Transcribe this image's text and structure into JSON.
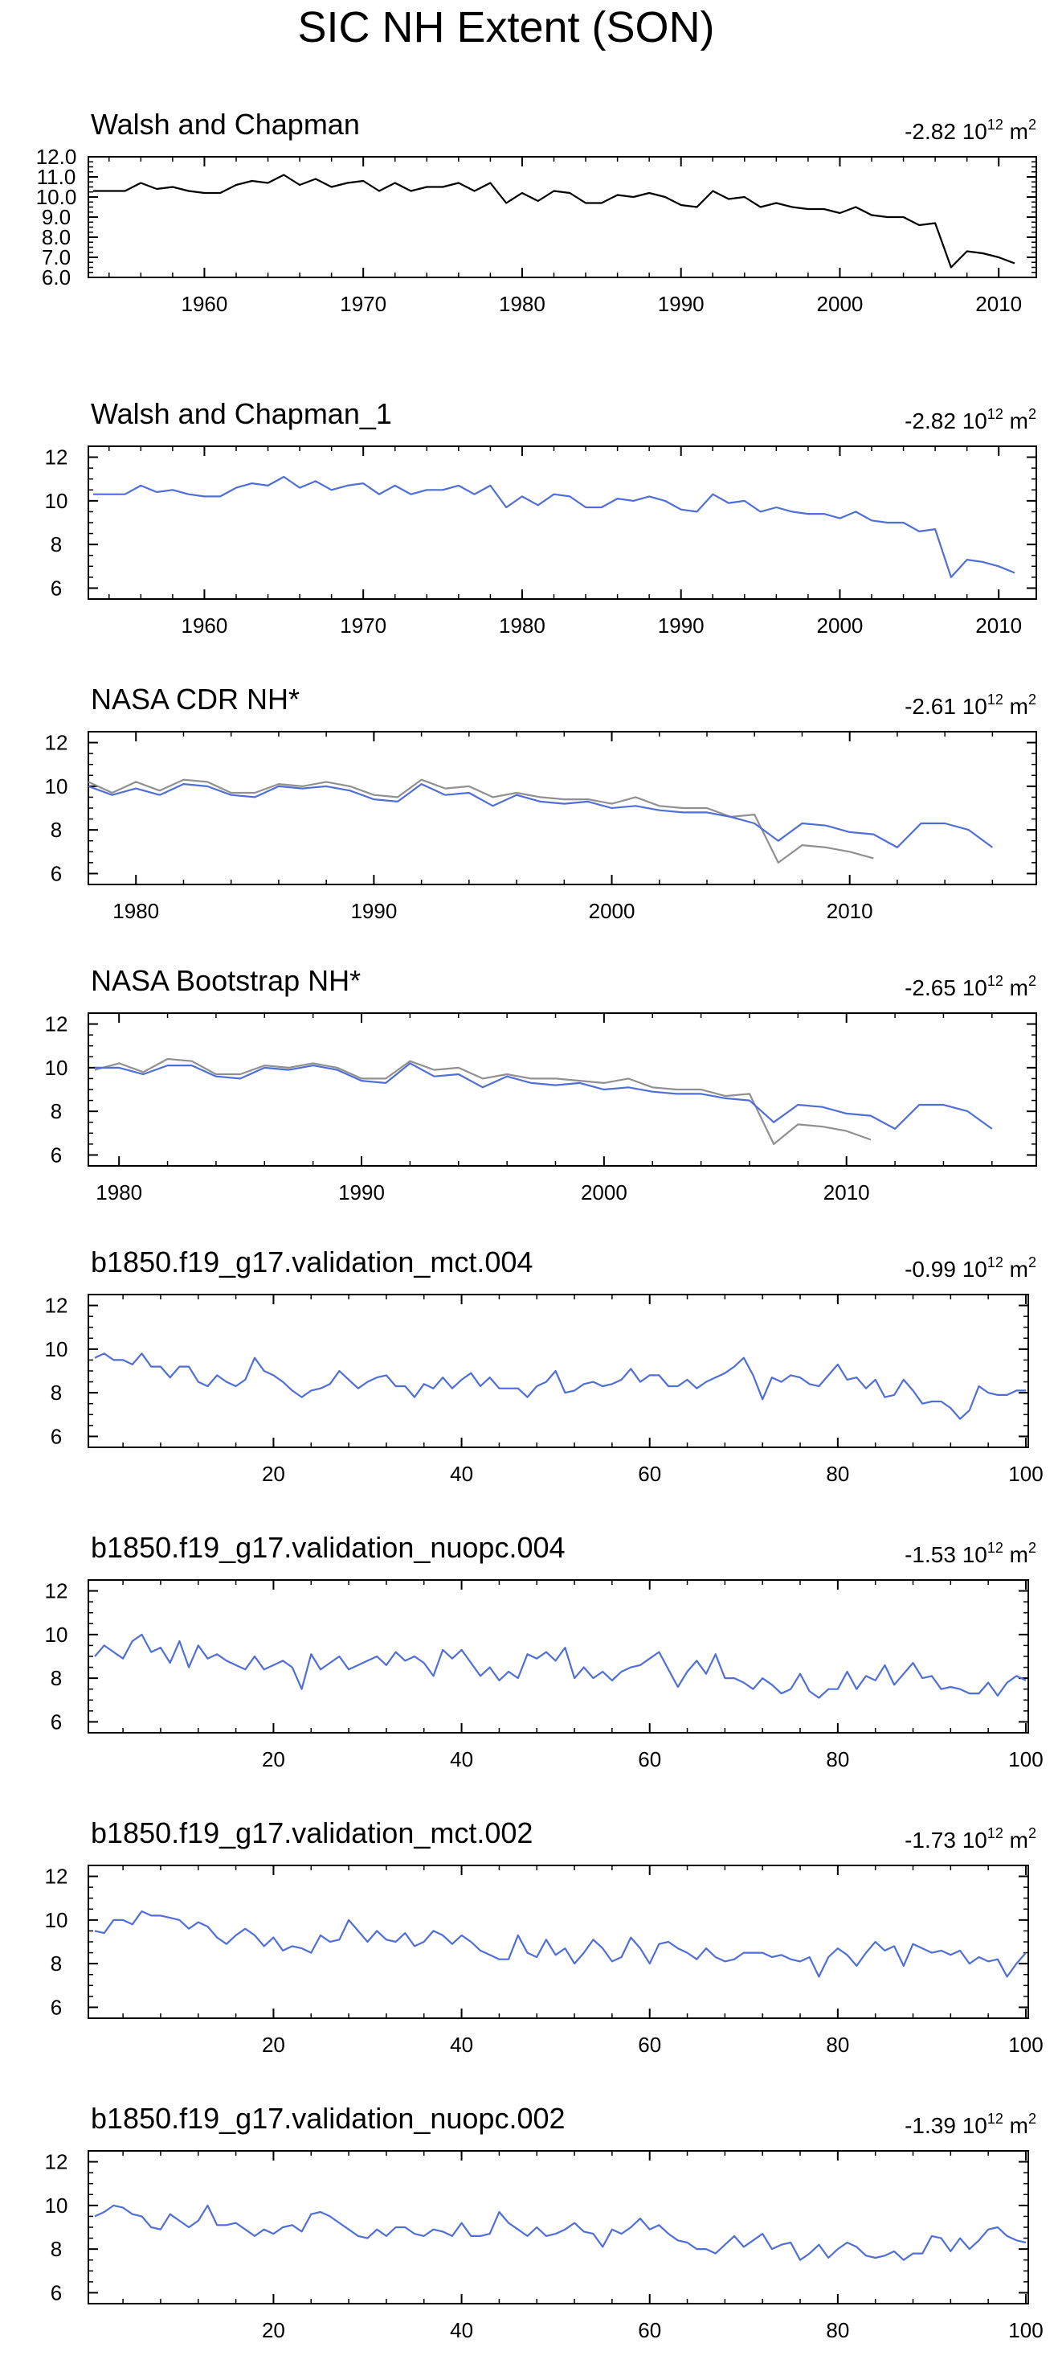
{
  "title": "SIC NH Extent (SON)",
  "colors": {
    "reference": "#000000",
    "model": "#4f6fd6",
    "overlay": "#909090",
    "axis": "#000000"
  },
  "chart_data": [
    {
      "type": "line",
      "title": "Walsh and Chapman",
      "trend": {
        "value": "-2.82",
        "unit_base": "10",
        "unit_exp": "12",
        "unit_suffix": "m",
        "unit_suffix_exp": "2"
      },
      "xlim": [
        1953,
        2011
      ],
      "ylim": [
        6,
        12
      ],
      "yticks": [
        6,
        7,
        8,
        9,
        10,
        11,
        12
      ],
      "ytick_labels": [
        "6.0",
        "7.0",
        "8.0",
        "9.0",
        "10.0",
        "11.0",
        "12.0"
      ],
      "xticks": [
        1960,
        1970,
        1980,
        1990,
        2000,
        2010
      ],
      "xtick_labels": [
        "1960",
        "1970",
        "1980",
        "1990",
        "2000",
        "2010"
      ],
      "series": [
        {
          "color": "#000000",
          "x_start": 1953,
          "values": [
            10.3,
            10.3,
            10.3,
            10.7,
            10.4,
            10.5,
            10.3,
            10.2,
            10.2,
            10.6,
            10.8,
            10.7,
            11.1,
            10.6,
            10.9,
            10.5,
            10.7,
            10.8,
            10.3,
            10.7,
            10.3,
            10.5,
            10.5,
            10.7,
            10.3,
            10.7,
            9.7,
            10.2,
            9.8,
            10.3,
            10.2,
            9.7,
            9.7,
            10.1,
            10.0,
            10.2,
            10.0,
            9.6,
            9.5,
            10.3,
            9.9,
            10.0,
            9.5,
            9.7,
            9.5,
            9.4,
            9.4,
            9.2,
            9.5,
            9.1,
            9.0,
            9.0,
            8.6,
            8.7,
            6.5,
            7.3,
            7.2,
            7.0,
            6.7
          ]
        }
      ]
    },
    {
      "type": "line",
      "title": "Walsh and Chapman_1",
      "trend": {
        "value": "-2.82",
        "unit_base": "10",
        "unit_exp": "12",
        "unit_suffix": "m",
        "unit_suffix_exp": "2"
      },
      "xlim": [
        1953,
        2011
      ],
      "ylim": [
        5.5,
        12.5
      ],
      "yticks": [
        6,
        8,
        10,
        12
      ],
      "ytick_labels": [
        "6",
        "8",
        "10",
        "12"
      ],
      "xticks": [
        1960,
        1970,
        1980,
        1990,
        2000,
        2010
      ],
      "xtick_labels": [
        "1960",
        "1970",
        "1980",
        "1990",
        "2000",
        "2010"
      ],
      "series": [
        {
          "color": "#4f6fd6",
          "x_start": 1953,
          "values": [
            10.3,
            10.3,
            10.3,
            10.7,
            10.4,
            10.5,
            10.3,
            10.2,
            10.2,
            10.6,
            10.8,
            10.7,
            11.1,
            10.6,
            10.9,
            10.5,
            10.7,
            10.8,
            10.3,
            10.7,
            10.3,
            10.5,
            10.5,
            10.7,
            10.3,
            10.7,
            9.7,
            10.2,
            9.8,
            10.3,
            10.2,
            9.7,
            9.7,
            10.1,
            10.0,
            10.2,
            10.0,
            9.6,
            9.5,
            10.3,
            9.9,
            10.0,
            9.5,
            9.7,
            9.5,
            9.4,
            9.4,
            9.2,
            9.5,
            9.1,
            9.0,
            9.0,
            8.6,
            8.7,
            6.5,
            7.3,
            7.2,
            7.0,
            6.7
          ]
        }
      ]
    },
    {
      "type": "line",
      "title": "NASA CDR NH*",
      "trend": {
        "value": "-2.61",
        "unit_base": "10",
        "unit_exp": "12",
        "unit_suffix": "m",
        "unit_suffix_exp": "2"
      },
      "xlim": [
        1978,
        2017
      ],
      "ylim": [
        5.5,
        12.5
      ],
      "yticks": [
        6,
        8,
        10,
        12
      ],
      "ytick_labels": [
        "6",
        "8",
        "10",
        "12"
      ],
      "xticks": [
        1980,
        1990,
        2000,
        2010
      ],
      "xtick_labels": [
        "1980",
        "1990",
        "2000",
        "2010"
      ],
      "series": [
        {
          "color": "#909090",
          "x_start": 1978,
          "values": [
            10.2,
            9.7,
            10.2,
            9.8,
            10.3,
            10.2,
            9.7,
            9.7,
            10.1,
            10.0,
            10.2,
            10.0,
            9.6,
            9.5,
            10.3,
            9.9,
            10.0,
            9.5,
            9.7,
            9.5,
            9.4,
            9.4,
            9.2,
            9.5,
            9.1,
            9.0,
            9.0,
            8.6,
            8.7,
            6.5,
            7.3,
            7.2,
            7.0,
            6.7
          ]
        },
        {
          "color": "#4f6fd6",
          "x_start": 1978,
          "values": [
            10.0,
            9.6,
            9.9,
            9.6,
            10.1,
            10.0,
            9.6,
            9.5,
            10.0,
            9.9,
            10.0,
            9.8,
            9.4,
            9.3,
            10.1,
            9.6,
            9.7,
            9.1,
            9.6,
            9.3,
            9.2,
            9.3,
            9.0,
            9.1,
            8.9,
            8.8,
            8.8,
            8.6,
            8.3,
            7.5,
            8.3,
            8.2,
            7.9,
            7.8,
            7.2,
            8.3,
            8.3,
            8.0,
            7.2
          ]
        }
      ]
    },
    {
      "type": "line",
      "title": "NASA Bootstrap NH*",
      "trend": {
        "value": "-2.65",
        "unit_base": "10",
        "unit_exp": "12",
        "unit_suffix": "m",
        "unit_suffix_exp": "2"
      },
      "xlim": [
        1979,
        2017
      ],
      "ylim": [
        5.5,
        12.5
      ],
      "yticks": [
        6,
        8,
        10,
        12
      ],
      "ytick_labels": [
        "6",
        "8",
        "10",
        "12"
      ],
      "xticks": [
        1980,
        1990,
        2000,
        2010
      ],
      "xtick_labels": [
        "1980",
        "1990",
        "2000",
        "2010"
      ],
      "series": [
        {
          "color": "#909090",
          "x_start": 1979,
          "values": [
            9.9,
            10.2,
            9.8,
            10.4,
            10.3,
            9.7,
            9.7,
            10.1,
            10.0,
            10.2,
            10.0,
            9.5,
            9.5,
            10.3,
            9.9,
            10.0,
            9.5,
            9.7,
            9.5,
            9.5,
            9.4,
            9.3,
            9.5,
            9.1,
            9.0,
            9.0,
            8.7,
            8.8,
            6.5,
            7.4,
            7.3,
            7.1,
            6.7
          ]
        },
        {
          "color": "#4f6fd6",
          "x_start": 1979,
          "values": [
            10.0,
            10.0,
            9.7,
            10.1,
            10.1,
            9.6,
            9.5,
            10.0,
            9.9,
            10.1,
            9.9,
            9.4,
            9.3,
            10.2,
            9.6,
            9.7,
            9.1,
            9.6,
            9.3,
            9.2,
            9.3,
            9.0,
            9.1,
            8.9,
            8.8,
            8.8,
            8.6,
            8.5,
            7.5,
            8.3,
            8.2,
            7.9,
            7.8,
            7.2,
            8.3,
            8.3,
            8.0,
            7.2
          ]
        }
      ]
    },
    {
      "type": "line",
      "title": "b1850.f19_g17.validation_mct.004",
      "trend": {
        "value": "-0.99",
        "unit_base": "10",
        "unit_exp": "12",
        "unit_suffix": "m",
        "unit_suffix_exp": "2"
      },
      "xlim": [
        1,
        100
      ],
      "ylim": [
        5.5,
        12.5
      ],
      "yticks": [
        6,
        8,
        10,
        12
      ],
      "ytick_labels": [
        "6",
        "8",
        "10",
        "12"
      ],
      "xticks": [
        20,
        40,
        60,
        80,
        100
      ],
      "xtick_labels": [
        "20",
        "40",
        "60",
        "80",
        "100"
      ],
      "series": [
        {
          "color": "#4f6fd6",
          "x_start": 1,
          "values": [
            9.6,
            9.8,
            9.5,
            9.5,
            9.3,
            9.8,
            9.2,
            9.2,
            8.7,
            9.2,
            9.2,
            8.5,
            8.3,
            8.8,
            8.5,
            8.3,
            8.6,
            9.6,
            9.0,
            8.8,
            8.5,
            8.1,
            7.8,
            8.1,
            8.2,
            8.4,
            9.0,
            8.6,
            8.2,
            8.5,
            8.7,
            8.8,
            8.3,
            8.3,
            7.8,
            8.4,
            8.2,
            8.7,
            8.2,
            8.6,
            8.9,
            8.3,
            8.7,
            8.2,
            8.2,
            8.2,
            7.8,
            8.3,
            8.5,
            9.0,
            8.0,
            8.1,
            8.4,
            8.5,
            8.3,
            8.4,
            8.6,
            9.1,
            8.5,
            8.8,
            8.8,
            8.3,
            8.3,
            8.6,
            8.2,
            8.5,
            8.7,
            8.9,
            9.2,
            9.6,
            8.8,
            7.7,
            8.7,
            8.5,
            8.8,
            8.7,
            8.4,
            8.3,
            8.8,
            9.3,
            8.6,
            8.7,
            8.2,
            8.6,
            7.8,
            7.9,
            8.6,
            8.1,
            7.5,
            7.6,
            7.6,
            7.3,
            6.8,
            7.2,
            8.3,
            8.0,
            7.9,
            7.9,
            8.1,
            8.1
          ]
        }
      ]
    },
    {
      "type": "line",
      "title": "b1850.f19_g17.validation_nuopc.004",
      "trend": {
        "value": "-1.53",
        "unit_base": "10",
        "unit_exp": "12",
        "unit_suffix": "m",
        "unit_suffix_exp": "2"
      },
      "xlim": [
        1,
        100
      ],
      "ylim": [
        5.5,
        12.5
      ],
      "yticks": [
        6,
        8,
        10,
        12
      ],
      "ytick_labels": [
        "6",
        "8",
        "10",
        "12"
      ],
      "xticks": [
        20,
        40,
        60,
        80,
        100
      ],
      "xtick_labels": [
        "20",
        "40",
        "60",
        "80",
        "100"
      ],
      "series": [
        {
          "color": "#4f6fd6",
          "x_start": 1,
          "values": [
            9.0,
            9.5,
            9.2,
            8.9,
            9.7,
            10.0,
            9.2,
            9.4,
            8.7,
            9.7,
            8.5,
            9.5,
            8.9,
            9.1,
            8.8,
            8.6,
            8.4,
            9.0,
            8.4,
            8.6,
            8.8,
            8.5,
            7.5,
            9.1,
            8.4,
            8.7,
            9.0,
            8.4,
            8.6,
            8.8,
            9.0,
            8.6,
            9.2,
            8.8,
            9.0,
            8.7,
            8.1,
            9.3,
            8.9,
            9.3,
            8.7,
            8.1,
            8.5,
            7.9,
            8.3,
            8.0,
            9.1,
            8.9,
            9.2,
            8.8,
            9.4,
            8.0,
            8.5,
            8.0,
            8.3,
            7.9,
            8.3,
            8.5,
            8.6,
            8.9,
            9.2,
            8.4,
            7.6,
            8.3,
            8.8,
            8.2,
            9.1,
            8.0,
            8.0,
            7.8,
            7.5,
            8.0,
            7.7,
            7.3,
            7.5,
            8.2,
            7.4,
            7.1,
            7.5,
            7.5,
            8.3,
            7.5,
            8.1,
            7.9,
            8.6,
            7.7,
            8.2,
            8.7,
            8.0,
            8.1,
            7.5,
            7.6,
            7.5,
            7.3,
            7.3,
            7.8,
            7.2,
            7.8,
            8.1,
            7.9
          ]
        }
      ]
    },
    {
      "type": "line",
      "title": "b1850.f19_g17.validation_mct.002",
      "trend": {
        "value": "-1.73",
        "unit_base": "10",
        "unit_exp": "12",
        "unit_suffix": "m",
        "unit_suffix_exp": "2"
      },
      "xlim": [
        1,
        100
      ],
      "ylim": [
        5.5,
        12.5
      ],
      "yticks": [
        6,
        8,
        10,
        12
      ],
      "ytick_labels": [
        "6",
        "8",
        "10",
        "12"
      ],
      "xticks": [
        20,
        40,
        60,
        80,
        100
      ],
      "xtick_labels": [
        "20",
        "40",
        "60",
        "80",
        "100"
      ],
      "series": [
        {
          "color": "#4f6fd6",
          "x_start": 1,
          "values": [
            9.5,
            9.4,
            10.0,
            10.0,
            9.8,
            10.4,
            10.2,
            10.2,
            10.1,
            10.0,
            9.6,
            9.9,
            9.7,
            9.2,
            8.9,
            9.3,
            9.6,
            9.3,
            8.8,
            9.2,
            8.6,
            8.8,
            8.7,
            8.5,
            9.3,
            9.0,
            9.1,
            10.0,
            9.5,
            9.0,
            9.5,
            9.1,
            9.0,
            9.4,
            8.8,
            9.0,
            9.5,
            9.3,
            8.9,
            9.3,
            9.0,
            8.6,
            8.4,
            8.2,
            8.2,
            9.3,
            8.5,
            8.3,
            9.1,
            8.4,
            8.7,
            8.0,
            8.5,
            9.1,
            8.7,
            8.1,
            8.3,
            9.2,
            8.7,
            8.0,
            8.9,
            9.0,
            8.7,
            8.5,
            8.2,
            8.7,
            8.3,
            8.1,
            8.2,
            8.5,
            8.5,
            8.5,
            8.3,
            8.4,
            8.2,
            8.1,
            8.3,
            7.4,
            8.3,
            8.7,
            8.4,
            7.9,
            8.5,
            9.0,
            8.6,
            8.8,
            7.9,
            8.9,
            8.7,
            8.5,
            8.6,
            8.4,
            8.6,
            8.0,
            8.3,
            8.1,
            8.2,
            7.4,
            8.0,
            8.5
          ]
        }
      ]
    },
    {
      "type": "line",
      "title": "b1850.f19_g17.validation_nuopc.002",
      "trend": {
        "value": "-1.39",
        "unit_base": "10",
        "unit_exp": "12",
        "unit_suffix": "m",
        "unit_suffix_exp": "2"
      },
      "xlim": [
        1,
        100
      ],
      "ylim": [
        5.5,
        12.5
      ],
      "yticks": [
        6,
        8,
        10,
        12
      ],
      "ytick_labels": [
        "6",
        "8",
        "10",
        "12"
      ],
      "xticks": [
        20,
        40,
        60,
        80,
        100
      ],
      "xtick_labels": [
        "20",
        "40",
        "60",
        "80",
        "100"
      ],
      "series": [
        {
          "color": "#4f6fd6",
          "x_start": 1,
          "values": [
            9.5,
            9.7,
            10.0,
            9.9,
            9.6,
            9.5,
            9.0,
            8.9,
            9.6,
            9.3,
            9.0,
            9.3,
            10.0,
            9.1,
            9.1,
            9.2,
            8.9,
            8.6,
            8.9,
            8.7,
            9.0,
            9.1,
            8.8,
            9.6,
            9.7,
            9.5,
            9.2,
            8.9,
            8.6,
            8.5,
            8.9,
            8.6,
            9.0,
            9.0,
            8.7,
            8.6,
            8.9,
            8.8,
            8.6,
            9.2,
            8.6,
            8.6,
            8.7,
            9.7,
            9.2,
            8.9,
            8.6,
            9.0,
            8.6,
            8.7,
            8.9,
            9.2,
            8.8,
            8.7,
            8.1,
            8.9,
            8.7,
            9.0,
            9.4,
            8.9,
            9.1,
            8.7,
            8.4,
            8.3,
            8.0,
            8.0,
            7.8,
            8.2,
            8.6,
            8.1,
            8.4,
            8.7,
            8.0,
            8.2,
            8.3,
            7.5,
            7.8,
            8.2,
            7.6,
            8.0,
            8.3,
            8.1,
            7.7,
            7.6,
            7.7,
            7.9,
            7.5,
            7.8,
            7.8,
            8.6,
            8.5,
            7.9,
            8.5,
            8.0,
            8.4,
            8.9,
            9.0,
            8.6,
            8.4,
            8.3
          ]
        }
      ]
    }
  ]
}
